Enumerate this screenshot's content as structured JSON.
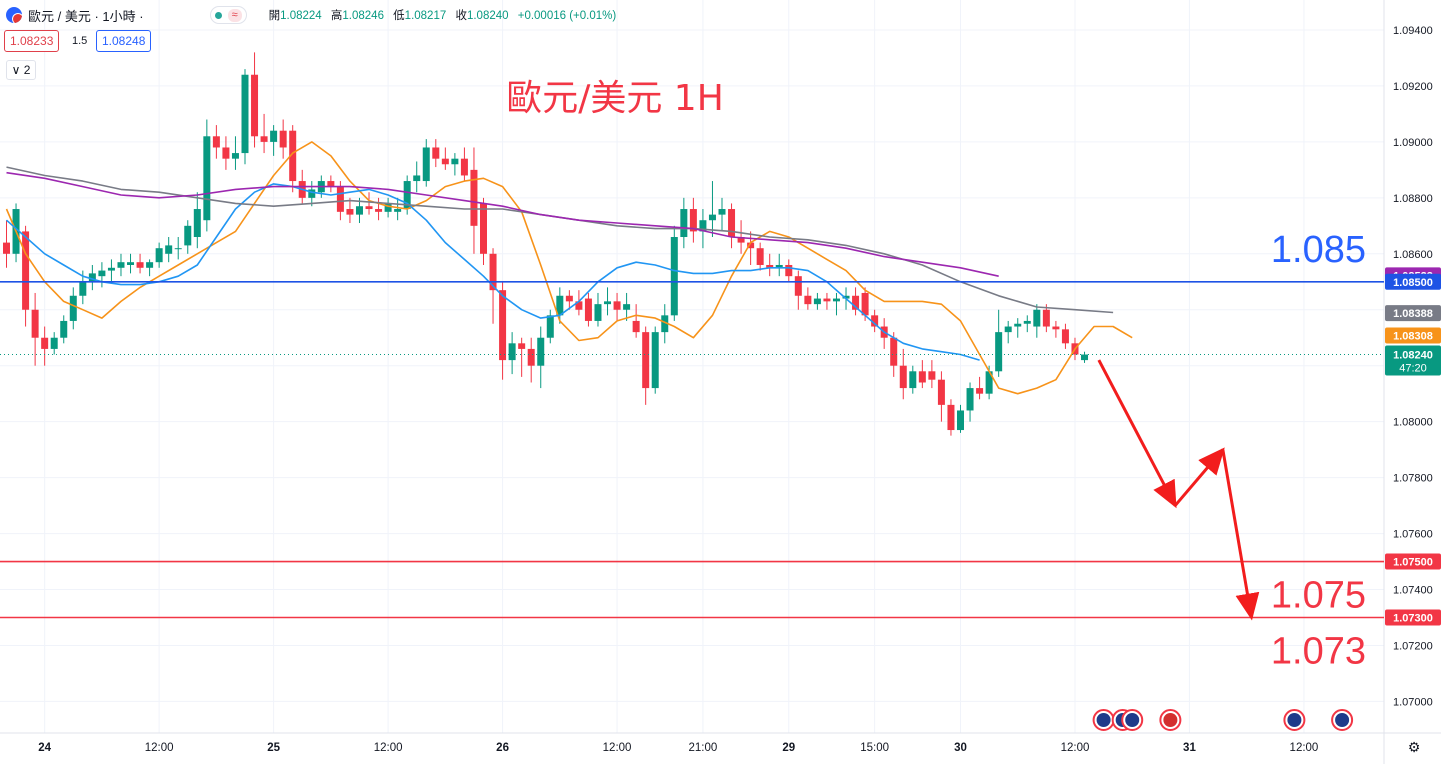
{
  "header": {
    "symbol": "歐元 / 美元 · 1小時 ·",
    "status_badge": "≈",
    "ohlc": [
      {
        "label": "開",
        "value": "1.08224"
      },
      {
        "label": "高",
        "value": "1.08246"
      },
      {
        "label": "低",
        "value": "1.08217"
      },
      {
        "label": "收",
        "value": "1.08240"
      },
      {
        "label": "",
        "value": "+0.00016 (+0.01%)"
      }
    ],
    "sell_price": "1.08233",
    "spread": "1.5",
    "buy_price": "1.08248",
    "indicators_toggle": "∨ 2"
  },
  "colors": {
    "up": "#089981",
    "down": "#f23645",
    "ma_orange": "#f7931a",
    "ma_blue": "#2196f3",
    "ma_gray": "#787b86",
    "ma_purple": "#9c27b0",
    "resistance": "#1e53e5",
    "support": "#f23645",
    "arrow": "#f21d1d",
    "annotation_title": "#f23645",
    "annotation_blue": "#2962ff"
  },
  "chart_data": {
    "type": "candlestick",
    "title": "歐元/美元 1H",
    "ylim": [
      1.0688,
      1.095
    ],
    "y_ticks": [
      "1.09400",
      "1.09200",
      "1.09000",
      "1.08800",
      "1.08600",
      "1.08400",
      "1.08200",
      "1.08000",
      "1.07800",
      "1.07600",
      "1.07400",
      "1.07200",
      "1.07000"
    ],
    "x_ticks": [
      {
        "label": "24",
        "bar": 4
      },
      {
        "label": "12:00",
        "bar": 16
      },
      {
        "label": "25",
        "bar": 28
      },
      {
        "label": "12:00",
        "bar": 40
      },
      {
        "label": "26",
        "bar": 52
      },
      {
        "label": "12:00",
        "bar": 64
      },
      {
        "label": "21:00",
        "bar": 73
      },
      {
        "label": "29",
        "bar": 82
      },
      {
        "label": "15:00",
        "bar": 91
      },
      {
        "label": "30",
        "bar": 100
      },
      {
        "label": "12:00",
        "bar": 112
      },
      {
        "label": "31",
        "bar": 124
      },
      {
        "label": "12:00",
        "bar": 136
      }
    ],
    "candles": [
      [
        1.0864,
        1.0872,
        1.0855,
        1.086
      ],
      [
        1.086,
        1.0878,
        1.0857,
        1.0876
      ],
      [
        1.0868,
        1.087,
        1.0834,
        1.084
      ],
      [
        1.084,
        1.0846,
        1.082,
        1.083
      ],
      [
        1.083,
        1.0834,
        1.082,
        1.0826
      ],
      [
        1.0826,
        1.0832,
        1.0824,
        1.083
      ],
      [
        1.083,
        1.0838,
        1.0828,
        1.0836
      ],
      [
        1.0836,
        1.0848,
        1.0833,
        1.0845
      ],
      [
        1.0845,
        1.0854,
        1.0842,
        1.085
      ],
      [
        1.085,
        1.0856,
        1.0847,
        1.0853
      ],
      [
        1.0852,
        1.0857,
        1.0848,
        1.0854
      ],
      [
        1.0854,
        1.0858,
        1.085,
        1.0855
      ],
      [
        1.0855,
        1.086,
        1.0852,
        1.0857
      ],
      [
        1.0856,
        1.086,
        1.0853,
        1.0857
      ],
      [
        1.0857,
        1.086,
        1.0853,
        1.0855
      ],
      [
        1.0855,
        1.0858,
        1.0852,
        1.0857
      ],
      [
        1.0857,
        1.0864,
        1.0855,
        1.0862
      ],
      [
        1.086,
        1.0866,
        1.0857,
        1.0863
      ],
      [
        1.0862,
        1.0866,
        1.0858,
        1.0862
      ],
      [
        1.0863,
        1.0872,
        1.086,
        1.087
      ],
      [
        1.0866,
        1.0882,
        1.0862,
        1.0876
      ],
      [
        1.0872,
        1.0908,
        1.0868,
        1.0902
      ],
      [
        1.0902,
        1.0906,
        1.0894,
        1.0898
      ],
      [
        1.0898,
        1.0902,
        1.089,
        1.0894
      ],
      [
        1.0894,
        1.0902,
        1.089,
        1.0896
      ],
      [
        1.0896,
        1.0926,
        1.0892,
        1.0924
      ],
      [
        1.0924,
        1.0932,
        1.0898,
        1.0902
      ],
      [
        1.0902,
        1.091,
        1.0896,
        1.09
      ],
      [
        1.09,
        1.0906,
        1.0895,
        1.0904
      ],
      [
        1.0904,
        1.0908,
        1.0894,
        1.0898
      ],
      [
        1.0904,
        1.0906,
        1.0882,
        1.0886
      ],
      [
        1.0886,
        1.089,
        1.0878,
        1.088
      ],
      [
        1.088,
        1.0886,
        1.0877,
        1.0883
      ],
      [
        1.0882,
        1.0888,
        1.088,
        1.0886
      ],
      [
        1.0886,
        1.0888,
        1.0882,
        1.0884
      ],
      [
        1.0884,
        1.0886,
        1.0872,
        1.0875
      ],
      [
        1.0876,
        1.088,
        1.0871,
        1.0874
      ],
      [
        1.0874,
        1.088,
        1.0871,
        1.0877
      ],
      [
        1.0877,
        1.0882,
        1.0874,
        1.0876
      ],
      [
        1.0876,
        1.088,
        1.0872,
        1.0875
      ],
      [
        1.0875,
        1.088,
        1.0873,
        1.0878
      ],
      [
        1.0875,
        1.088,
        1.0872,
        1.0876
      ],
      [
        1.0876,
        1.0888,
        1.0874,
        1.0886
      ],
      [
        1.0886,
        1.0893,
        1.0882,
        1.0888
      ],
      [
        1.0886,
        1.0901,
        1.0884,
        1.0898
      ],
      [
        1.0898,
        1.0901,
        1.0891,
        1.0894
      ],
      [
        1.0894,
        1.0898,
        1.089,
        1.0892
      ],
      [
        1.0892,
        1.0896,
        1.0888,
        1.0894
      ],
      [
        1.0894,
        1.0898,
        1.0886,
        1.0888
      ],
      [
        1.089,
        1.0898,
        1.086,
        1.087
      ],
      [
        1.0878,
        1.088,
        1.0856,
        1.086
      ],
      [
        1.086,
        1.0862,
        1.0835,
        1.0847
      ],
      [
        1.0847,
        1.085,
        1.0815,
        1.0822
      ],
      [
        1.0822,
        1.0832,
        1.0817,
        1.0828
      ],
      [
        1.0828,
        1.083,
        1.0816,
        1.0826
      ],
      [
        1.0826,
        1.083,
        1.0814,
        1.082
      ],
      [
        1.082,
        1.0834,
        1.0812,
        1.083
      ],
      [
        1.083,
        1.084,
        1.0828,
        1.0838
      ],
      [
        1.0838,
        1.0848,
        1.0835,
        1.0845
      ],
      [
        1.0845,
        1.0847,
        1.084,
        1.0843
      ],
      [
        1.0843,
        1.0847,
        1.0838,
        1.084
      ],
      [
        1.0844,
        1.0846,
        1.0834,
        1.0836
      ],
      [
        1.0836,
        1.0846,
        1.0834,
        1.0842
      ],
      [
        1.0842,
        1.0848,
        1.0838,
        1.0843
      ],
      [
        1.0843,
        1.0846,
        1.0836,
        1.084
      ],
      [
        1.084,
        1.0846,
        1.0836,
        1.0842
      ],
      [
        1.0836,
        1.0842,
        1.083,
        1.0832
      ],
      [
        1.0832,
        1.0834,
        1.0806,
        1.0812
      ],
      [
        1.0812,
        1.0834,
        1.081,
        1.0832
      ],
      [
        1.0832,
        1.0842,
        1.0828,
        1.0838
      ],
      [
        1.0838,
        1.087,
        1.0836,
        1.0866
      ],
      [
        1.0866,
        1.088,
        1.0862,
        1.0876
      ],
      [
        1.0876,
        1.088,
        1.0864,
        1.0868
      ],
      [
        1.0868,
        1.0876,
        1.0862,
        1.0872
      ],
      [
        1.0872,
        1.0886,
        1.0866,
        1.0874
      ],
      [
        1.0874,
        1.088,
        1.0868,
        1.0876
      ],
      [
        1.0876,
        1.0878,
        1.0862,
        1.0866
      ],
      [
        1.0866,
        1.0872,
        1.086,
        1.0864
      ],
      [
        1.0864,
        1.0868,
        1.0856,
        1.0862
      ],
      [
        1.0862,
        1.0864,
        1.0854,
        1.0856
      ],
      [
        1.0856,
        1.086,
        1.0852,
        1.0855
      ],
      [
        1.0855,
        1.086,
        1.0852,
        1.0856
      ],
      [
        1.0856,
        1.0858,
        1.085,
        1.0852
      ],
      [
        1.0852,
        1.0854,
        1.084,
        1.0845
      ],
      [
        1.0845,
        1.0848,
        1.084,
        1.0842
      ],
      [
        1.0842,
        1.0846,
        1.084,
        1.0844
      ],
      [
        1.0844,
        1.0846,
        1.084,
        1.0843
      ],
      [
        1.0843,
        1.0846,
        1.0838,
        1.0844
      ],
      [
        1.0844,
        1.0848,
        1.084,
        1.0845
      ],
      [
        1.0845,
        1.0848,
        1.0838,
        1.084
      ],
      [
        1.0846,
        1.0848,
        1.0836,
        1.0838
      ],
      [
        1.0838,
        1.084,
        1.0832,
        1.0834
      ],
      [
        1.0834,
        1.0837,
        1.0826,
        1.083
      ],
      [
        1.083,
        1.0832,
        1.0816,
        1.082
      ],
      [
        1.082,
        1.0826,
        1.0808,
        1.0812
      ],
      [
        1.0812,
        1.082,
        1.081,
        1.0818
      ],
      [
        1.0818,
        1.0822,
        1.0812,
        1.0814
      ],
      [
        1.0818,
        1.0822,
        1.0812,
        1.0815
      ],
      [
        1.0815,
        1.0818,
        1.08,
        1.0806
      ],
      [
        1.0806,
        1.0808,
        1.0795,
        1.0797
      ],
      [
        1.0797,
        1.0806,
        1.0796,
        1.0804
      ],
      [
        1.0804,
        1.0814,
        1.08,
        1.0812
      ],
      [
        1.0812,
        1.0816,
        1.0808,
        1.081
      ],
      [
        1.081,
        1.082,
        1.0808,
        1.0818
      ],
      [
        1.0818,
        1.084,
        1.0816,
        1.0832
      ],
      [
        1.0832,
        1.0836,
        1.0828,
        1.0834
      ],
      [
        1.0834,
        1.0837,
        1.083,
        1.0835
      ],
      [
        1.0835,
        1.0838,
        1.0832,
        1.0836
      ],
      [
        1.0834,
        1.0842,
        1.083,
        1.084
      ],
      [
        1.084,
        1.0842,
        1.0832,
        1.0834
      ],
      [
        1.0834,
        1.0836,
        1.083,
        1.0833
      ],
      [
        1.0833,
        1.0835,
        1.0826,
        1.0828
      ],
      [
        1.0828,
        1.083,
        1.0822,
        1.0824
      ],
      [
        1.0822,
        1.0825,
        1.0821,
        1.0824
      ]
    ],
    "moving_averages": [
      {
        "color": "ma_orange",
        "last": "1.08308",
        "values": [
          1.0876,
          1.086,
          1.085,
          1.0843,
          1.084,
          1.0837,
          1.0843,
          1.0848,
          1.0852,
          1.0856,
          1.086,
          1.0864,
          1.0868,
          1.0878,
          1.0888,
          1.0896,
          1.09,
          1.0895,
          1.0886,
          1.0879,
          1.0877,
          1.0876,
          1.0879,
          1.0884,
          1.0886,
          1.0887,
          1.0884,
          1.0875,
          1.0856,
          1.0836,
          1.0829,
          1.083,
          1.0836,
          1.0838,
          1.0837,
          1.0834,
          1.083,
          1.0838,
          1.0852,
          1.0864,
          1.0868,
          1.0866,
          1.0862,
          1.0858,
          1.0854,
          1.0847,
          1.0843,
          1.0843,
          1.0843,
          1.0842,
          1.0836,
          1.0824,
          1.0812,
          1.081,
          1.0812,
          1.0815,
          1.0826,
          1.0834,
          1.0834,
          1.083
        ],
        "start_bar": 0,
        "step": 2
      },
      {
        "color": "ma_blue",
        "last": "1.08229",
        "values": [
          1.0872,
          1.0866,
          1.086,
          1.0856,
          1.0852,
          1.085,
          1.0849,
          1.0849,
          1.085,
          1.0852,
          1.0856,
          1.0866,
          1.0876,
          1.0882,
          1.0885,
          1.0884,
          1.0882,
          1.0881,
          1.0882,
          1.0883,
          1.0881,
          1.0878,
          1.0872,
          1.0864,
          1.0858,
          1.0852,
          1.0845,
          1.084,
          1.0837,
          1.0838,
          1.0843,
          1.085,
          1.0855,
          1.0857,
          1.0856,
          1.0854,
          1.0853,
          1.0853,
          1.0854,
          1.0854,
          1.0855,
          1.0855,
          1.0854,
          1.085,
          1.0844,
          1.0838,
          1.0832,
          1.0828,
          1.0826,
          1.0825,
          1.0824,
          1.0822
        ],
        "start_bar": 0,
        "step": 2
      },
      {
        "color": "ma_gray",
        "last": "1.08388",
        "values": [
          1.0891,
          1.0888,
          1.0886,
          1.0883,
          1.0882,
          1.088,
          1.0878,
          1.0877,
          1.0878,
          1.0879,
          1.0878,
          1.0877,
          1.0876,
          1.0876,
          1.0874,
          1.0872,
          1.087,
          1.0869,
          1.0869,
          1.0868,
          1.0866,
          1.0865,
          1.0863,
          1.086,
          1.0856,
          1.085,
          1.0845,
          1.0841,
          1.084,
          1.0839
        ],
        "start_bar": 0,
        "step": 4
      },
      {
        "color": "ma_purple",
        "last": "1.08523",
        "values": [
          1.0889,
          1.0887,
          1.0884,
          1.0881,
          1.088,
          1.0881,
          1.0883,
          1.0884,
          1.0884,
          1.0884,
          1.0883,
          1.0881,
          1.0879,
          1.0877,
          1.0874,
          1.0872,
          1.0871,
          1.087,
          1.0869,
          1.0866,
          1.0865,
          1.0864,
          1.0862,
          1.0859,
          1.0857,
          1.0855,
          1.0852
        ],
        "start_bar": 0,
        "step": 4
      }
    ],
    "horizontal_lines": [
      {
        "price": 1.085,
        "label": "1.08500",
        "color": "resistance",
        "annotation": "1.085",
        "annotation_color": "annotation_blue"
      },
      {
        "price": 1.075,
        "label": "1.07500",
        "color": "support",
        "annotation": "1.075",
        "annotation_color": "annotation_title"
      },
      {
        "price": 1.073,
        "label": "1.07300",
        "color": "support",
        "annotation": "1.073",
        "annotation_color": "annotation_title"
      }
    ],
    "last_price": {
      "label": "1.08240",
      "countdown": "47:20"
    },
    "forecast_path": [
      {
        "bar": 114.5,
        "price": 1.0822
      },
      {
        "bar": 122.5,
        "price": 1.077
      },
      {
        "bar": 127.5,
        "price": 1.079
      },
      {
        "bar": 130.5,
        "price": 1.073
      }
    ],
    "event_icons": [
      {
        "bar": 115,
        "type": "eu"
      },
      {
        "bar": 117,
        "type": "eu"
      },
      {
        "bar": 118,
        "type": "eu"
      },
      {
        "bar": 122,
        "type": "us"
      },
      {
        "bar": 135,
        "type": "eu"
      },
      {
        "bar": 140,
        "type": "eu"
      }
    ]
  }
}
